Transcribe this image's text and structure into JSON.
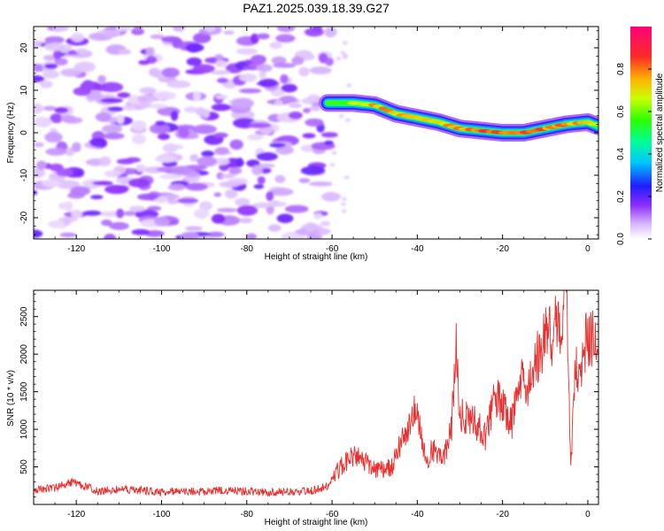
{
  "figure": {
    "title": "PAZ1.2025.039.18.39.G27"
  },
  "chart_data": [
    {
      "type": "heatmap",
      "xlabel": "Height of straight line (km)",
      "ylabel": "Frequency (Hz)",
      "xlim": [
        -130,
        2.5
      ],
      "ylim": [
        -25,
        25
      ],
      "xticks": [
        -120,
        -100,
        -80,
        -60,
        -40,
        -20,
        0
      ],
      "yticks": [
        -20,
        -10,
        0,
        10,
        20
      ],
      "colorbar": {
        "label": "Normalized spectral amplitude",
        "range": [
          0,
          1
        ],
        "ticks": [
          0.0,
          0.2,
          0.4,
          0.6,
          0.8
        ],
        "colormap": "purple-blue-cyan-green-yellow-red-magenta"
      },
      "noise_region": {
        "x": [
          -130,
          -60
        ],
        "y": [
          -25,
          25
        ],
        "max_amplitude": 0.2
      },
      "signal_ridge": {
        "x": [
          -61,
          -55,
          -50,
          -45,
          -40,
          -35,
          -30,
          -25,
          -20,
          -15,
          -10,
          -5,
          0,
          2.5
        ],
        "frequency": [
          7,
          7,
          6.5,
          4.5,
          3.5,
          2.5,
          1,
          0.5,
          0,
          0,
          1,
          2,
          2.5,
          1.5
        ],
        "amplitude": [
          0.35,
          0.7,
          0.8,
          0.75,
          0.7,
          0.72,
          0.75,
          0.85,
          0.9,
          0.82,
          0.78,
          0.8,
          0.72,
          0.5
        ]
      }
    },
    {
      "type": "line",
      "xlabel": "Height of straight line (km)",
      "ylabel": "SNR (10 * v/v)",
      "xlim": [
        -130,
        2.5
      ],
      "ylim": [
        0,
        2850
      ],
      "xticks": [
        -120,
        -100,
        -80,
        -60,
        -40,
        -20,
        0
      ],
      "yticks": [
        500,
        1000,
        1500,
        2000,
        2500
      ],
      "color": "#e8312f",
      "series": [
        {
          "x": [
            -130,
            -125,
            -121,
            -115,
            -110,
            -105,
            -100,
            -95,
            -90,
            -85,
            -80,
            -75,
            -70,
            -65,
            -61,
            -58,
            -55,
            -52,
            -49,
            -46,
            -44,
            -42,
            -40,
            -38,
            -36,
            -34,
            -32,
            -31,
            -30,
            -28,
            -26,
            -24,
            -22,
            -20,
            -18,
            -16,
            -14,
            -12,
            -10,
            -8,
            -6,
            -5,
            -4,
            -3,
            -2,
            0,
            2.5
          ],
          "y": [
            200,
            220,
            300,
            180,
            200,
            190,
            160,
            180,
            170,
            190,
            175,
            160,
            170,
            180,
            250,
            500,
            650,
            550,
            450,
            500,
            800,
            1100,
            1250,
            600,
            750,
            550,
            1000,
            2150,
            1200,
            1150,
            1050,
            900,
            1350,
            1400,
            1050,
            1650,
            1500,
            1950,
            2200,
            2300,
            2550,
            2800,
            500,
            1900,
            1600,
            2300,
            2000
          ]
        }
      ]
    }
  ]
}
